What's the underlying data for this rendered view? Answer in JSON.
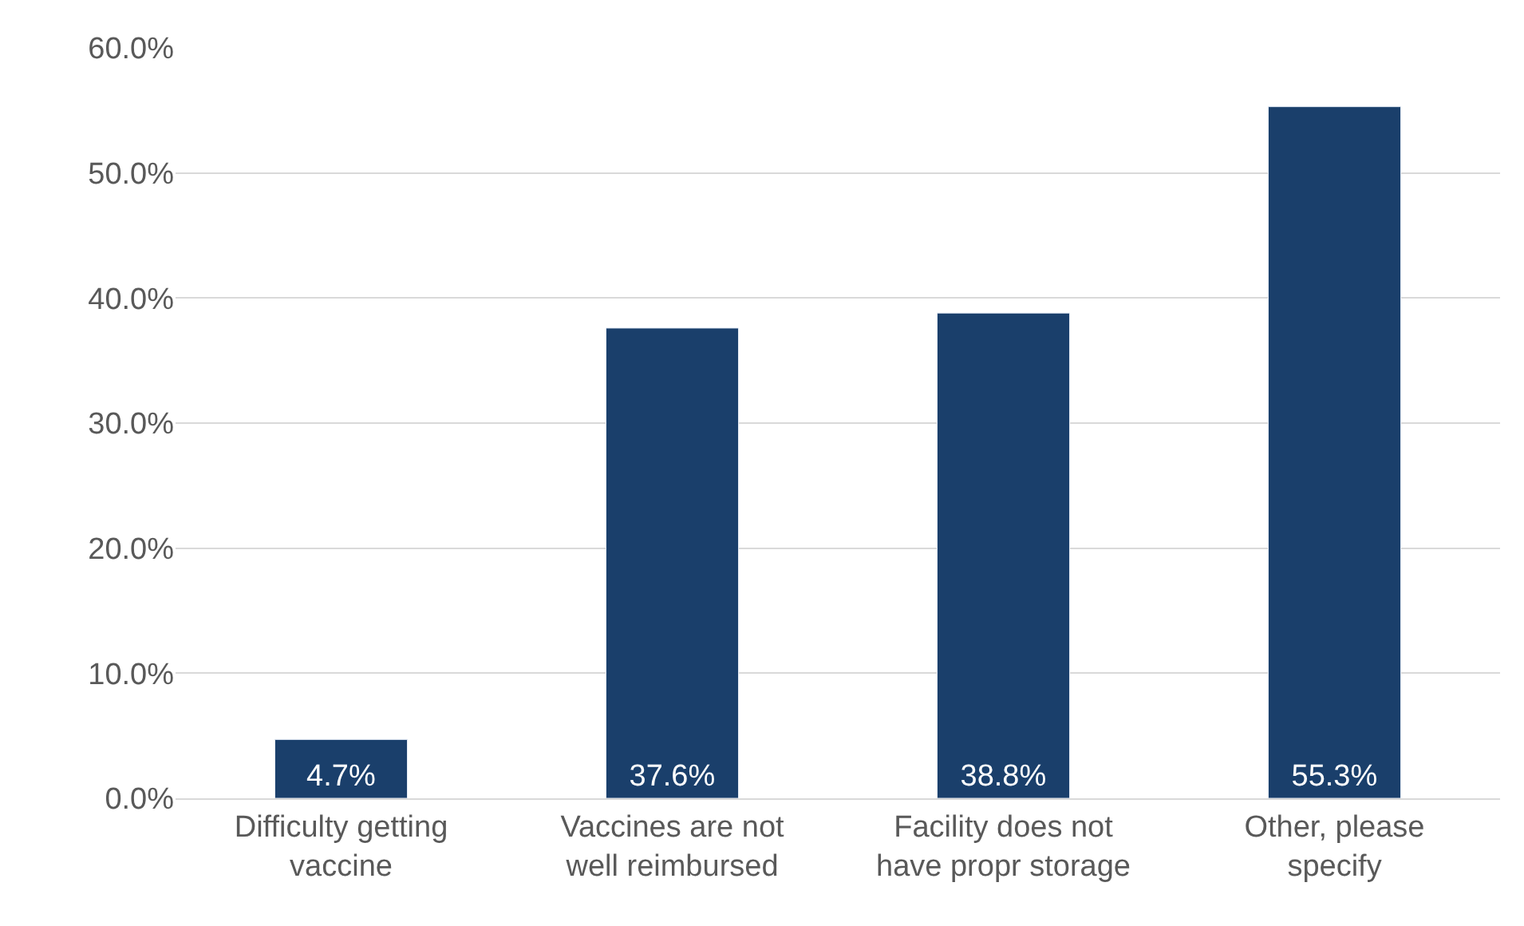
{
  "chart_data": {
    "type": "bar",
    "categories": [
      "Difficulty getting vaccine",
      "Vaccines are not well reimbursed",
      "Facility does not have propr storage",
      "Other, please specify"
    ],
    "values": [
      4.7,
      37.6,
      38.8,
      55.3
    ],
    "value_labels": [
      "4.7%",
      "37.6%",
      "38.8%",
      "55.3%"
    ],
    "color": "#1a3f6b",
    "ylim": [
      0,
      60
    ],
    "yticks": [
      {
        "value": 0,
        "label": "0.0%"
      },
      {
        "value": 10,
        "label": "10.0%"
      },
      {
        "value": 20,
        "label": "20.0%"
      },
      {
        "value": 30,
        "label": "30.0%"
      },
      {
        "value": 40,
        "label": "40.0%"
      },
      {
        "value": 50,
        "label": "50.0%"
      },
      {
        "value": 60,
        "label": "60.0%"
      }
    ],
    "grid": "y",
    "legend": false
  }
}
